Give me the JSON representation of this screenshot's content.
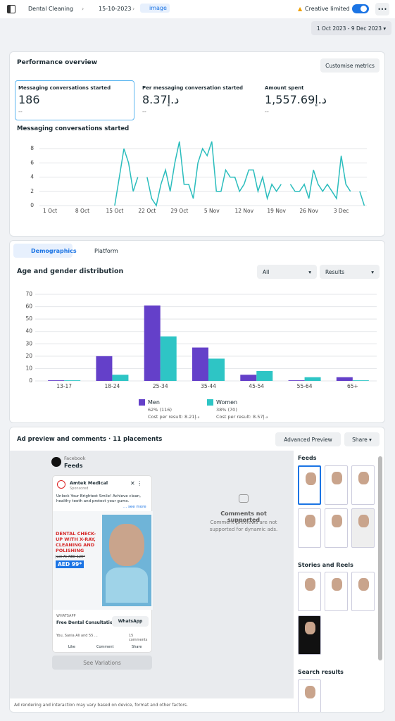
{
  "header": {
    "breadcrumbs": [
      "Dental Cleaning",
      "15-10-2023",
      "image"
    ],
    "status": "Creative limited",
    "date_range": "1 Oct 2023 - 9 Dec 2023"
  },
  "performance": {
    "title": "Performance overview",
    "button": "Customise metrics",
    "metrics": [
      {
        "label": "Messaging conversations started",
        "value": "186",
        "sub": "--"
      },
      {
        "label": "Per messaging conversation started",
        "value": "8.37د.إ",
        "sub": "--"
      },
      {
        "label": "Amount spent",
        "value": "1,557.69د.إ",
        "sub": "--"
      }
    ],
    "chart": {
      "type": "line",
      "title": "Messaging conversations started",
      "color": "#2bbdbd",
      "categories": [
        "1 Oct",
        null,
        null,
        null,
        null,
        null,
        null,
        "8 Oct",
        null,
        null,
        null,
        null,
        null,
        null,
        "15 Oct",
        null,
        null,
        null,
        null,
        null,
        null,
        "22 Oct",
        null,
        null,
        null,
        null,
        null,
        null,
        "29 Oct",
        null,
        null,
        null,
        null,
        null,
        null,
        "5 Nov",
        null,
        null,
        null,
        null,
        null,
        null,
        "12 Nov",
        null,
        null,
        null,
        null,
        null,
        null,
        "19 Nov",
        null,
        null,
        null,
        null,
        null,
        null,
        "26 Nov",
        null,
        null,
        null,
        null,
        null,
        null,
        "3 Dec",
        null,
        null,
        null,
        null,
        null,
        null
      ],
      "values": [
        null,
        null,
        null,
        null,
        null,
        null,
        null,
        null,
        null,
        null,
        null,
        null,
        null,
        null,
        0,
        4,
        8,
        6,
        2,
        4,
        null,
        4,
        1,
        0,
        3,
        5,
        2,
        6,
        9,
        3,
        3,
        1,
        6,
        8,
        7,
        9,
        2,
        2,
        5,
        4,
        4,
        2,
        3,
        5,
        5,
        2,
        4,
        1,
        3,
        2,
        3,
        null,
        3,
        2,
        2,
        3,
        1,
        5,
        3,
        2,
        3,
        2,
        1,
        7,
        3,
        2,
        null,
        2,
        0,
        null
      ],
      "ylim": [
        0,
        9
      ],
      "yticks": [
        0,
        2,
        4,
        6,
        8
      ],
      "grid": true
    }
  },
  "demographics": {
    "tabs": [
      "Demographics",
      "Platform"
    ],
    "title": "Age and gender distribution",
    "filters": [
      "All",
      "Results"
    ],
    "chart": {
      "type": "bar",
      "categories": [
        "13-17",
        "18-24",
        "25-34",
        "35-44",
        "45-54",
        "55-64",
        "65+"
      ],
      "series": [
        {
          "name": "Men",
          "color": "#6440c9",
          "values": [
            0.5,
            20,
            61,
            27,
            5,
            0.5,
            3
          ],
          "share": "62% (116)",
          "cost": "Cost per result: 8.21د.إ"
        },
        {
          "name": "Women",
          "color": "#2ec5c5",
          "values": [
            0.5,
            5,
            36,
            18,
            8,
            3,
            0.5
          ],
          "share": "38% (70)",
          "cost": "Cost per result: 8.57د.إ"
        }
      ],
      "ylim": [
        0,
        70
      ],
      "yticks": [
        0,
        10,
        20,
        30,
        40,
        50,
        60,
        70
      ],
      "grid": true
    }
  },
  "ad_preview": {
    "title": "Ad preview and comments · 11 placements",
    "advanced": "Advanced Preview",
    "share": "Share",
    "platform": "Facebook",
    "placement": "Feeds",
    "ad": {
      "page": "Amtek Medical",
      "sponsored": "Sponsored",
      "text": "Unlock Your Brightest Smile! Achieve clean, healthy teeth and protect your gums.",
      "see_more": "... see more",
      "headline": "DENTAL CHECK-UP WITH X-RAY, CLEANING AND POLISHING",
      "old_price": "Just At AED 129*",
      "price": "AED 99*",
      "cta_type": "WHATSAPP",
      "cta_title": "Free Dental Consultation",
      "cta_button": "WhatsApp",
      "reactions": "You, Sania Ali and 55 ...",
      "comments": "15 comments",
      "actions": [
        "Like",
        "Comment",
        "Share"
      ]
    },
    "variations": "See Variations",
    "no_comments_title": "Comments not supported",
    "no_comments_text": "Comment previews are not supported for dynamic ads.",
    "sections": [
      "Feeds",
      "Stories and Reels",
      "Search results"
    ],
    "footer": "Ad rendering and interaction may vary based on device, format and other factors."
  }
}
